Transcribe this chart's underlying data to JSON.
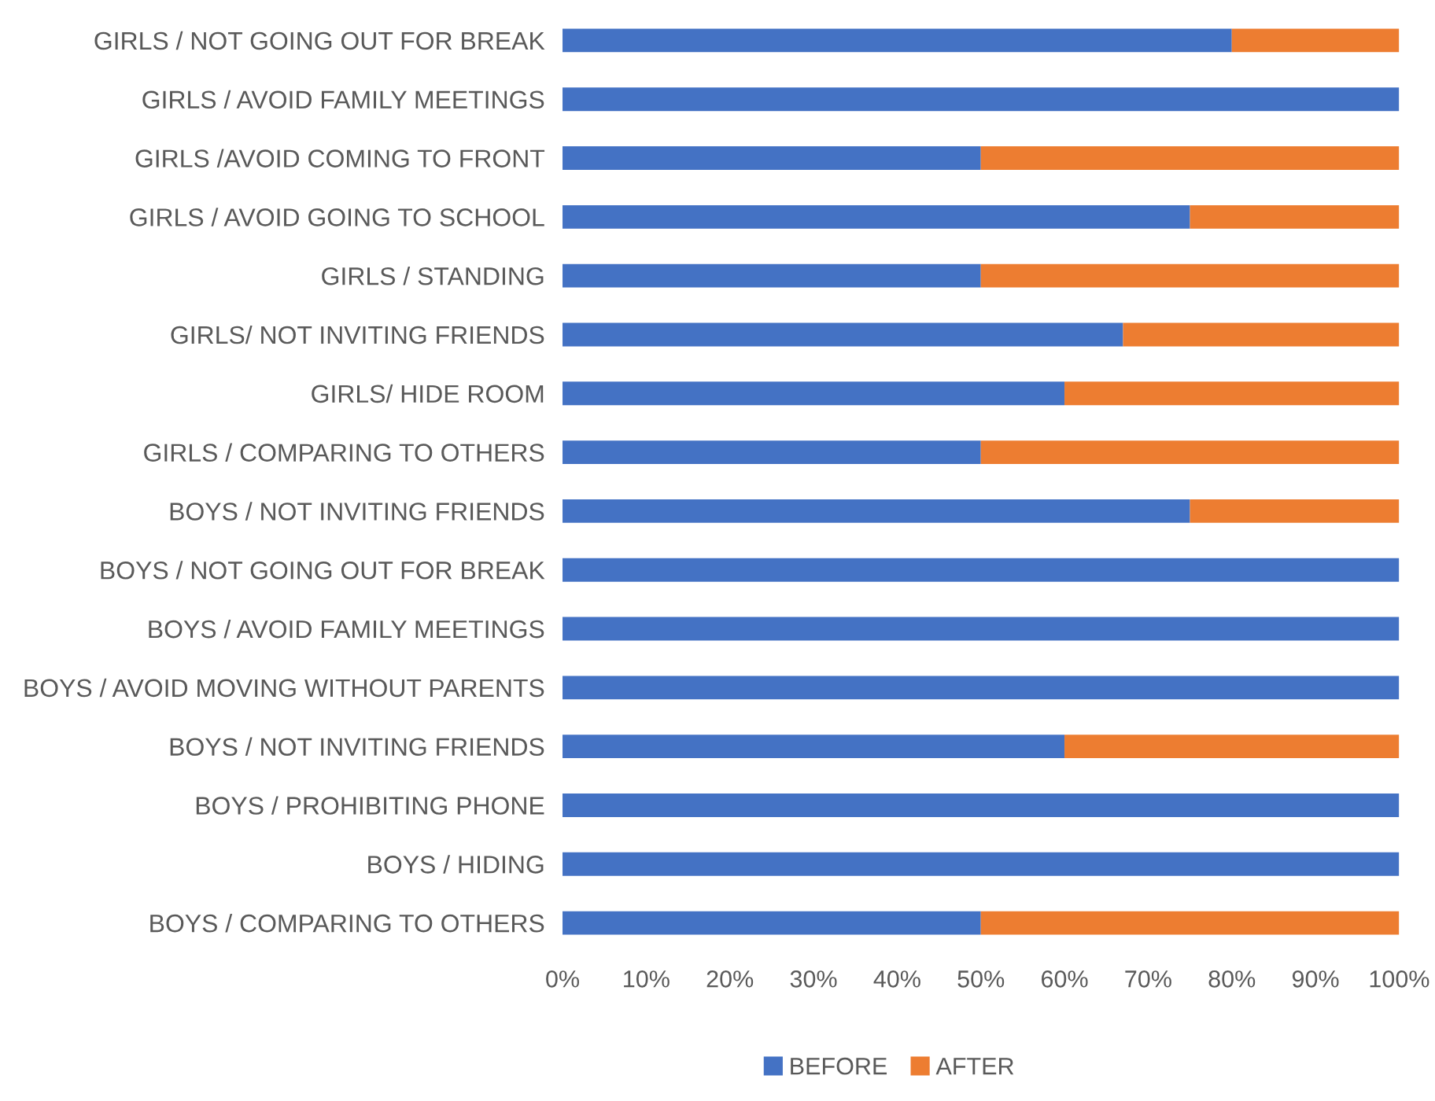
{
  "chart_data": {
    "type": "bar",
    "orientation": "horizontal",
    "stacked": true,
    "categories": [
      "GIRLS / NOT GOING OUT FOR BREAK",
      "GIRLS / AVOID FAMILY MEETINGS",
      "GIRLS /AVOID COMING TO FRONT",
      "GIRLS / AVOID GOING TO SCHOOL",
      "GIRLS / STANDING",
      "GIRLS/ NOT INVITING FRIENDS",
      "GIRLS/ HIDE ROOM",
      "GIRLS / COMPARING TO OTHERS",
      "BOYS / NOT INVITING FRIENDS",
      "BOYS / NOT GOING OUT FOR BREAK",
      "BOYS / AVOID FAMILY MEETINGS",
      "BOYS / AVOID MOVING WITHOUT PARENTS",
      "BOYS / NOT INVITING FRIENDS",
      "BOYS / PROHIBITING PHONE",
      "BOYS / HIDING",
      "BOYS / COMPARING TO OTHERS"
    ],
    "series": [
      {
        "name": "BEFORE",
        "color": "#4472c4",
        "values": [
          80,
          100,
          50,
          75,
          50,
          67,
          60,
          50,
          75,
          100,
          100,
          100,
          60,
          100,
          100,
          50
        ]
      },
      {
        "name": "AFTER",
        "color": "#ed7d31",
        "values": [
          20,
          0,
          50,
          25,
          50,
          33,
          40,
          50,
          25,
          0,
          0,
          0,
          40,
          0,
          0,
          50
        ]
      }
    ],
    "xlim": [
      0,
      100
    ],
    "xticks": [
      {
        "value": 0,
        "label": "0%"
      },
      {
        "value": 10,
        "label": "10%"
      },
      {
        "value": 20,
        "label": "20%"
      },
      {
        "value": 30,
        "label": "30%"
      },
      {
        "value": 40,
        "label": "40%"
      },
      {
        "value": 50,
        "label": "50%"
      },
      {
        "value": 60,
        "label": "60%"
      },
      {
        "value": 70,
        "label": "70%"
      },
      {
        "value": 80,
        "label": "80%"
      },
      {
        "value": 90,
        "label": "90%"
      },
      {
        "value": 100,
        "label": "100%"
      }
    ],
    "grid": false,
    "legend": "bottom"
  }
}
